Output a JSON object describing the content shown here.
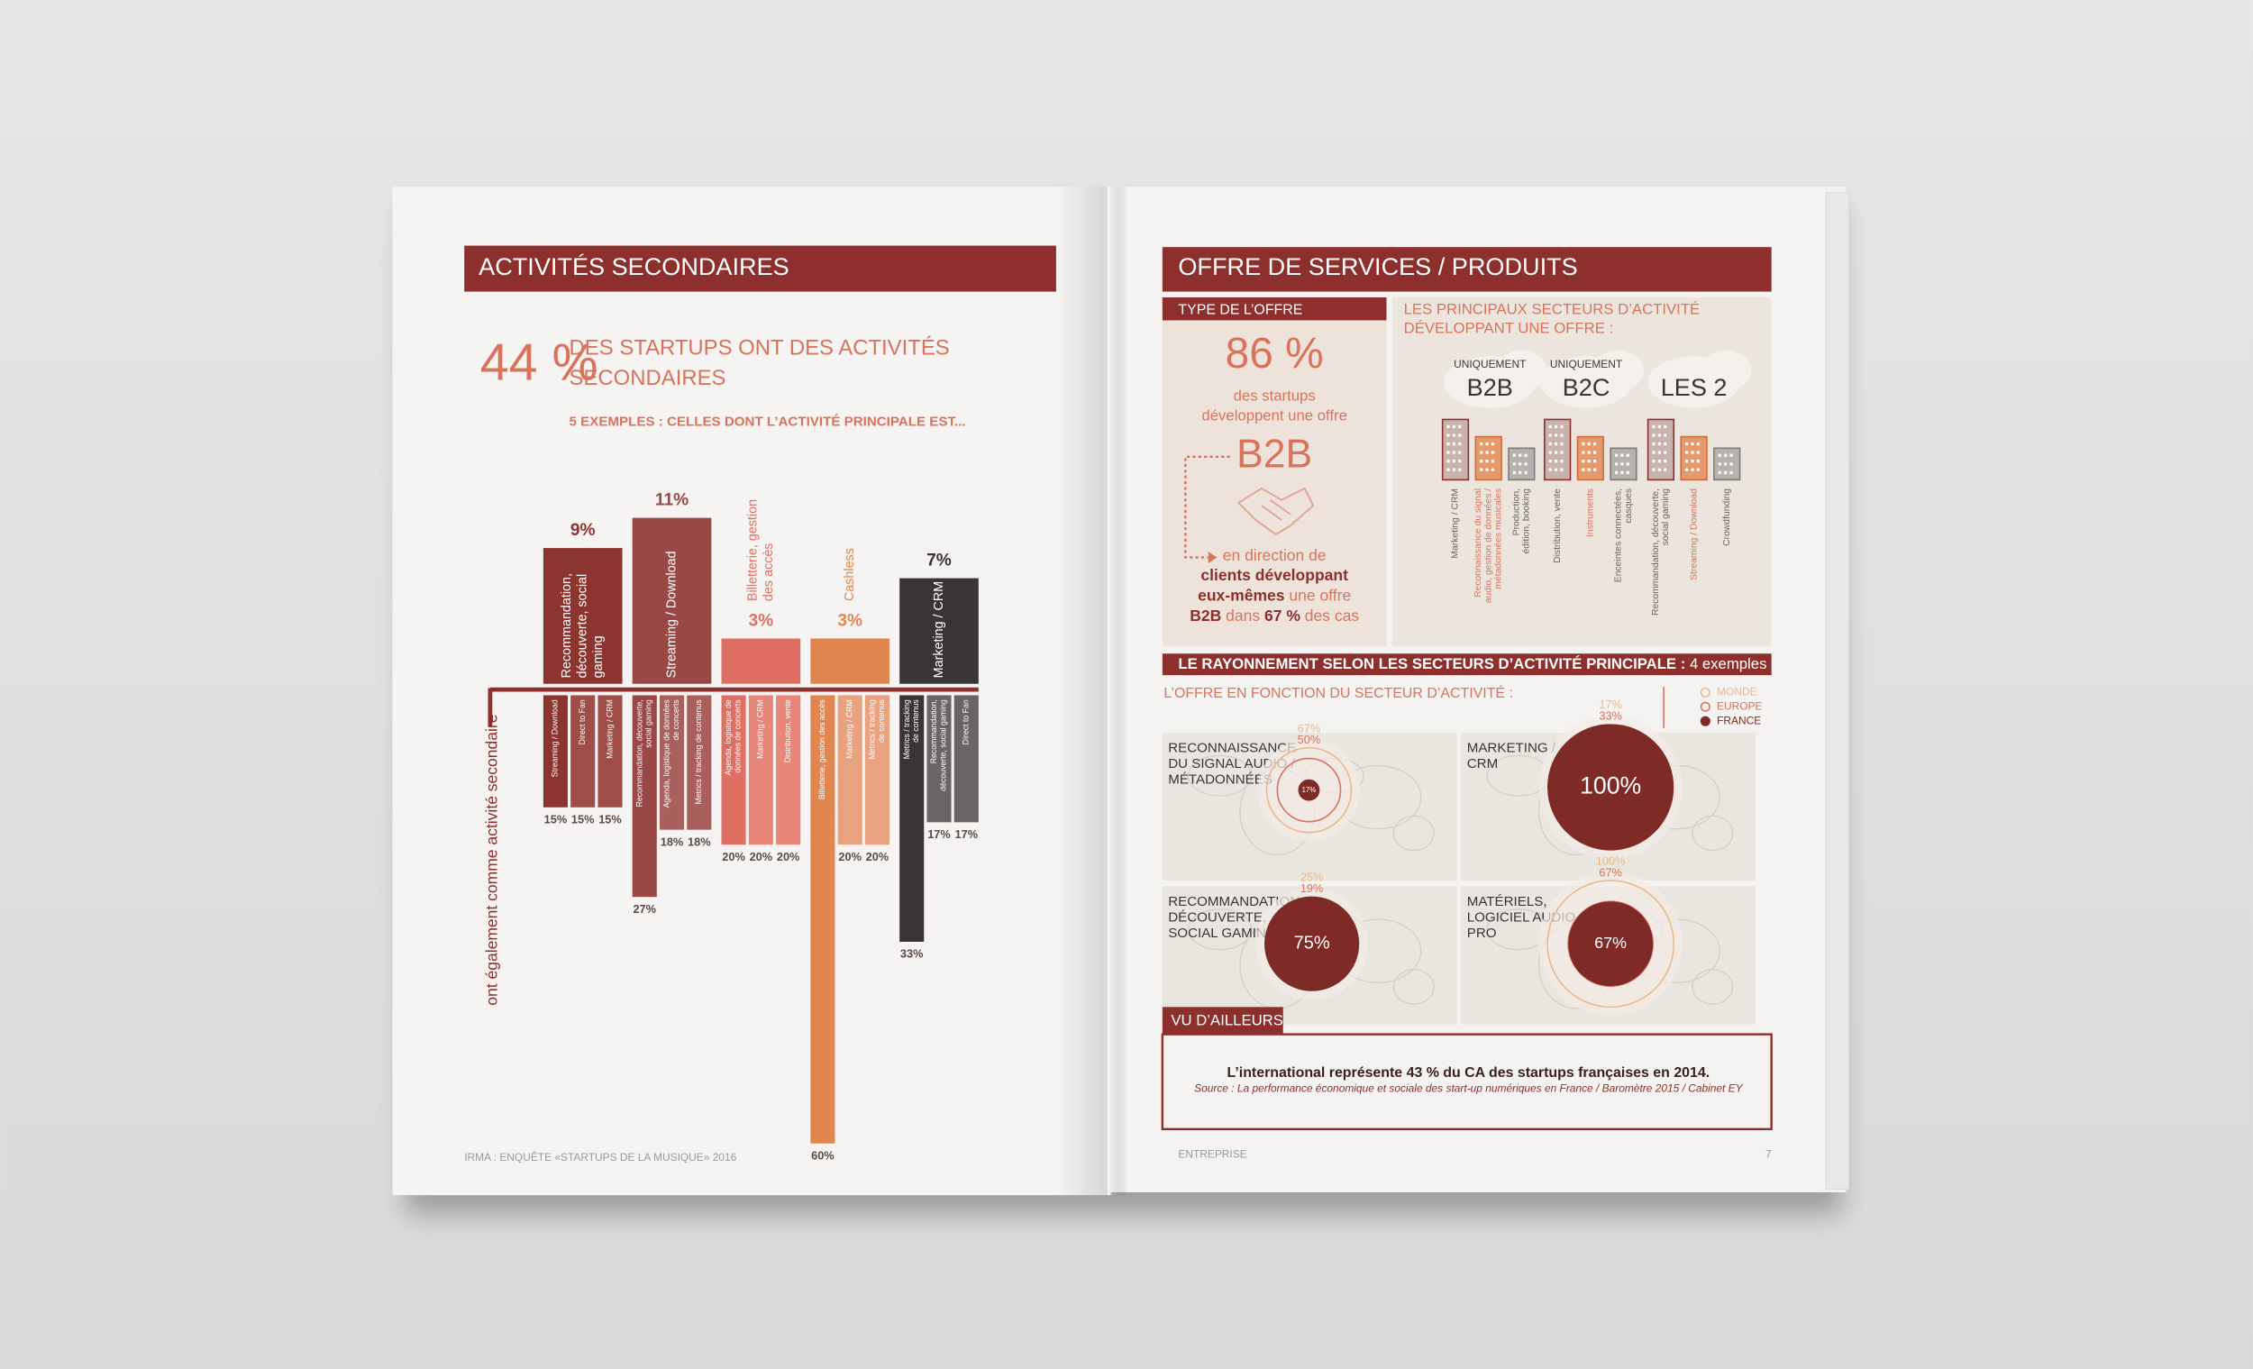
{
  "left_page": {
    "header": "ACTIVITÉS SECONDAIRES",
    "stat": {
      "value": "44 %",
      "text_lines": [
        "DES STARTUPS ONT DES ACTIVITÉS",
        "SECONDAIRES"
      ],
      "subtitle": "5 EXEMPLES : CELLES DONT L’ACTIVITÉ PRINCIPALE EST..."
    },
    "chart": {
      "axis_label": "ont également comme activité secondaire",
      "groups": [
        {
          "label_lines": [
            "Recommandation,",
            "découverte, social",
            "gaming"
          ],
          "value": 9,
          "value_label": "9%",
          "color": "#8c3530",
          "secondary_color": "#9e4d47",
          "secondary": [
            {
              "label_lines": [
                "Streaming / Download"
              ],
              "value": 15,
              "value_label": "15%"
            },
            {
              "label_lines": [
                "Direct to Fan"
              ],
              "value": 15,
              "value_label": "15%"
            },
            {
              "label_lines": [
                "Marketing / CRM"
              ],
              "value": 15,
              "value_label": "15%"
            }
          ]
        },
        {
          "label_lines": [
            "Streaming / Download"
          ],
          "value": 11,
          "value_label": "11%",
          "color": "#9a4846",
          "secondary_color": "#a8605d",
          "secondary": [
            {
              "label_lines": [
                "Recommandation, découverte,",
                "social gaming"
              ],
              "value": 27,
              "value_label": "27%"
            },
            {
              "label_lines": [
                "Agenda, logistique de données",
                "de concerts"
              ],
              "value": 18,
              "value_label": "18%"
            },
            {
              "label_lines": [
                "Metrics / tracking de contenus"
              ],
              "value": 18,
              "value_label": "18%"
            }
          ]
        },
        {
          "label_lines": [
            "Billetterie, gestion",
            "des accès"
          ],
          "value": 3,
          "value_label": "3%",
          "color": "#e06f63",
          "secondary_color": "#e8867a",
          "secondary": [
            {
              "label_lines": [
                "Agenda, logistique de",
                "données de concerts"
              ],
              "value": 20,
              "value_label": "20%"
            },
            {
              "label_lines": [
                "Marketing / CRM"
              ],
              "value": 20,
              "value_label": "20%"
            },
            {
              "label_lines": [
                "Distribution, vente"
              ],
              "value": 20,
              "value_label": "20%"
            }
          ]
        },
        {
          "label_lines": [
            "Cashless"
          ],
          "value": 3,
          "value_label": "3%",
          "color": "#e2864f",
          "secondary_color": "#e9a27f",
          "secondary": [
            {
              "label_lines": [
                "Billetterie, gestion des accès"
              ],
              "value": 60,
              "value_label": "60%"
            },
            {
              "label_lines": [
                "Marketing / CRM"
              ],
              "value": 20,
              "value_label": "20%"
            },
            {
              "label_lines": [
                "Metrics / tracking",
                "de contenus"
              ],
              "value": 20,
              "value_label": "20%"
            }
          ]
        },
        {
          "label_lines": [
            "Marketing / CRM"
          ],
          "value": 7,
          "value_label": "7%",
          "color": "#3a3435",
          "secondary_color": "#6a6465",
          "secondary": [
            {
              "label_lines": [
                "Metrics / tracking",
                "de contenus"
              ],
              "value": 33,
              "value_label": "33%"
            },
            {
              "label_lines": [
                "Recommandation,",
                "découverte, social gaming"
              ],
              "value": 17,
              "value_label": "17%"
            },
            {
              "label_lines": [
                "Direct to Fan"
              ],
              "value": 17,
              "value_label": "17%"
            }
          ]
        }
      ]
    },
    "footer": "IRMA : ENQUÊTE «STARTUPS DE LA MUSIQUE» 2016"
  },
  "right_page": {
    "header": "OFFRE DE SERVICES / PRODUITS",
    "type_offre": {
      "title": "TYPE DE L’OFFRE",
      "stat": "86 %",
      "lines": [
        "des startups",
        "développent une offre"
      ],
      "big": "B2B",
      "detail_lines": [
        [
          {
            "text": "en direction de",
            "bold": false
          }
        ],
        [
          {
            "text": "clients développant",
            "bold": true
          }
        ],
        [
          {
            "text": "eux-mêmes",
            "bold": true
          },
          {
            "text": " une offre",
            "bold": false
          }
        ],
        [
          {
            "text": "B2B",
            "bold": true
          },
          {
            "text": " dans ",
            "bold": false
          },
          {
            "text": "67 %",
            "bold": true
          },
          {
            "text": " des cas",
            "bold": false
          }
        ]
      ]
    },
    "sectors": {
      "title_lines": [
        "LES PRINCIPAUX SECTEURS D’ACTIVITÉ",
        "DÉVELOPPANT UNE OFFRE :"
      ],
      "columns": [
        {
          "kicker": "UNIQUEMENT",
          "label": "B2B",
          "items": [
            [
              "Marketing / CRM"
            ],
            [
              "Reconnaissance du signal",
              "audio, gestion de données /",
              "métadonnées musicales"
            ],
            [
              "Production,",
              "édition, booking"
            ]
          ]
        },
        {
          "kicker": "UNIQUEMENT",
          "label": "B2C",
          "items": [
            [
              "Distribution, vente"
            ],
            [
              "Instruments"
            ],
            [
              "Enceintes connectées,",
              "casques"
            ]
          ]
        },
        {
          "label": "LES 2",
          "items": [
            [
              "Recommandation, découverte,",
              "social gaming"
            ],
            [
              "Streaming / Download"
            ],
            [
              "Crowdfunding"
            ]
          ]
        }
      ]
    },
    "rayonnement": {
      "header_main": "LE RAYONNEMENT SELON LES SECTEURS D’ACTIVITÉ PRINCIPALE :",
      "header_extra": " 4 exemples",
      "subtitle": "L’OFFRE EN FONCTION DU SECTEUR D’ACTIVITÉ :",
      "legend": [
        {
          "name": "MONDE",
          "color": "#e9b98c"
        },
        {
          "name": "EUROPE",
          "color": "#d9735c"
        },
        {
          "name": "FRANCE",
          "color": "#7e2a27"
        }
      ],
      "panels": [
        {
          "name_lines": [
            "RECONNAISSANCE",
            "DU SIGNAL AUDIO /",
            "MÉTADONNÉES"
          ],
          "values": [
            67,
            50,
            17
          ],
          "value_labels": [
            "67%",
            "50%",
            "17%"
          ]
        },
        {
          "name_lines": [
            "MARKETING /",
            "CRM"
          ],
          "values": [
            17,
            33,
            100
          ],
          "value_labels": [
            "17%",
            "33%",
            "100%"
          ]
        },
        {
          "name_lines": [
            "RECOMMANDATION,",
            "DÉCOUVERTE,",
            "SOCIAL GAMING"
          ],
          "values": [
            25,
            19,
            75
          ],
          "value_labels": [
            "25%",
            "19%",
            "75%"
          ]
        },
        {
          "name_lines": [
            "MATÉRIELS,",
            "LOGICIEL AUDIO",
            "PRO"
          ],
          "values": [
            100,
            67,
            67
          ],
          "value_labels": [
            "100%",
            "67%",
            "67%"
          ]
        }
      ]
    },
    "vu_ailleurs": {
      "tab": "VU D’AILLEURS",
      "statement": "L’international représente 43 % du CA des startups françaises en 2014.",
      "source": "Source : La performance économique et sociale des start-up numériques en France / Baromètre 2015 / Cabinet EY"
    },
    "footer": {
      "left": "ENTREPRISE",
      "page": "7"
    }
  }
}
